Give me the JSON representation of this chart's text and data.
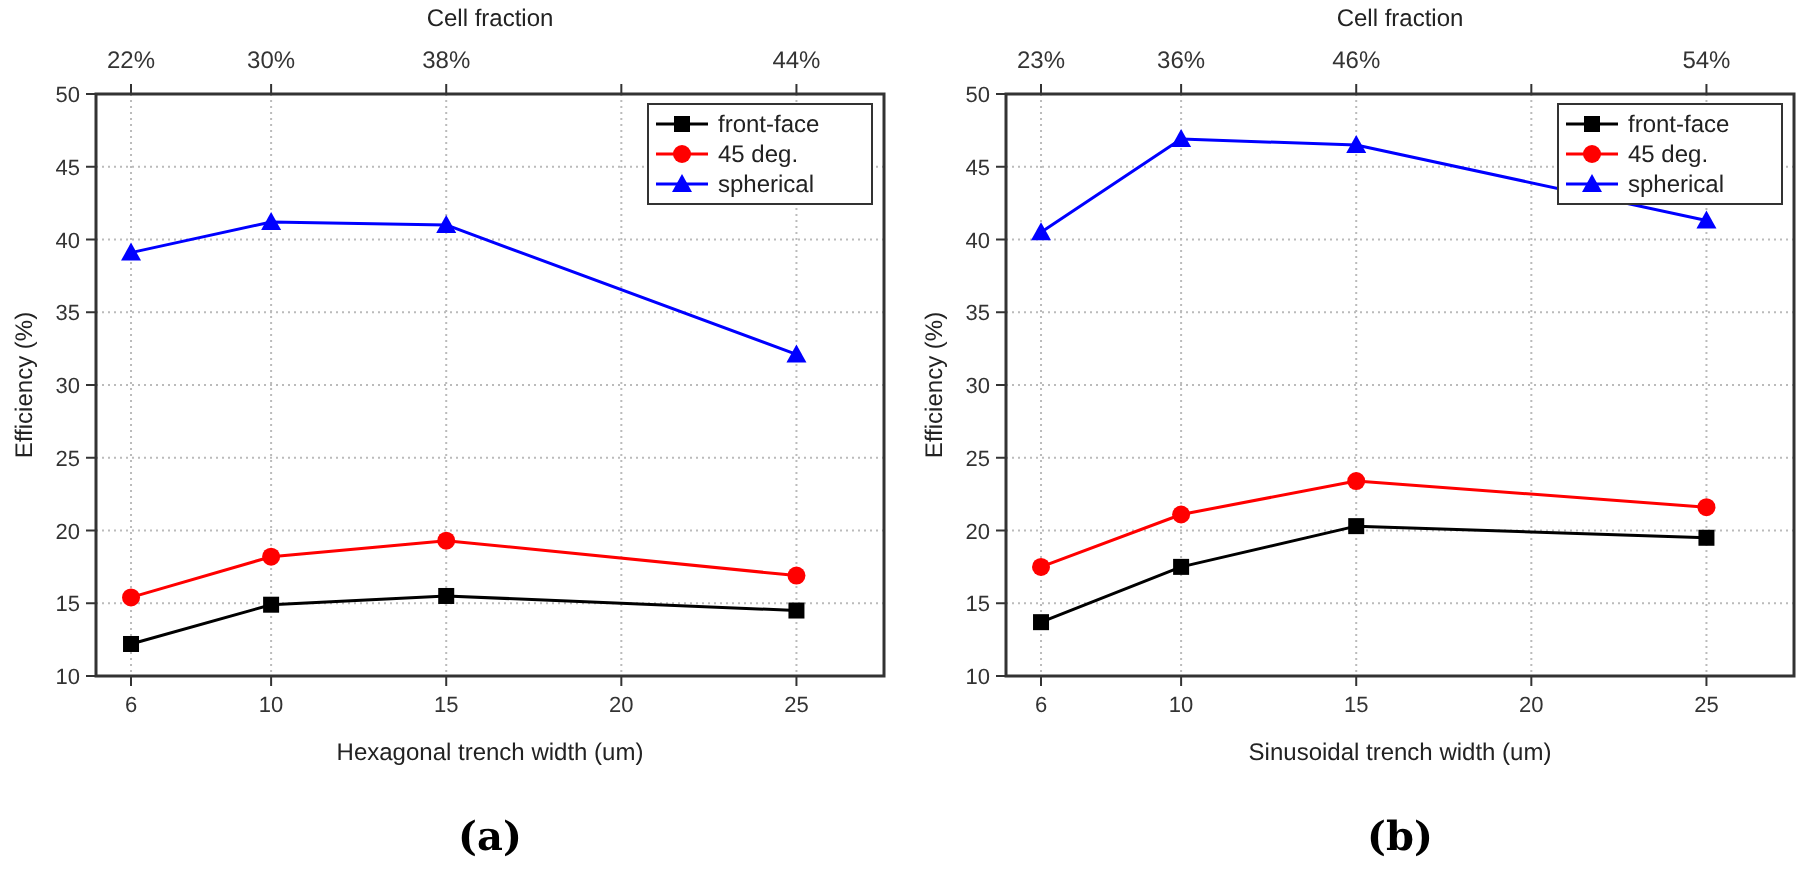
{
  "chart_data": [
    {
      "type": "line",
      "title": "(a)",
      "xlabel": "Hexagonal trench width (um)",
      "ylabel": "Efficiency (%)",
      "x2label": "Cell fraction",
      "x": [
        6,
        10,
        15,
        25
      ],
      "xlim": [
        5,
        27.5
      ],
      "xticks": [
        6,
        10,
        15,
        20,
        25
      ],
      "ylim": [
        10,
        50
      ],
      "yticks": [
        10,
        15,
        20,
        25,
        30,
        35,
        40,
        45,
        50
      ],
      "grid": true,
      "legend": "top right",
      "line_style": "solid",
      "annotations": [
        {
          "text": "22%",
          "x": 6
        },
        {
          "text": "30%",
          "x": 10
        },
        {
          "text": "38%",
          "x": 15
        },
        {
          "text": "44%",
          "x": 25
        }
      ],
      "series": [
        {
          "name": "front-face",
          "color": "#000000",
          "marker": "square",
          "values": [
            12.2,
            14.9,
            15.5,
            14.5
          ]
        },
        {
          "name": "45 deg.",
          "color": "#ff0000",
          "marker": "circle",
          "values": [
            15.4,
            18.2,
            19.3,
            16.9
          ]
        },
        {
          "name": "spherical",
          "color": "#0000ff",
          "marker": "triangle",
          "values": [
            39.1,
            41.2,
            41.0,
            32.1
          ]
        }
      ]
    },
    {
      "type": "line",
      "title": "(b)",
      "xlabel": "Sinusoidal trench width (um)",
      "ylabel": "Efficiency (%)",
      "x2label": "Cell fraction",
      "x": [
        6,
        10,
        15,
        25
      ],
      "xlim": [
        5,
        27.5
      ],
      "xticks": [
        6,
        10,
        15,
        20,
        25
      ],
      "ylim": [
        10,
        50
      ],
      "yticks": [
        10,
        15,
        20,
        25,
        30,
        35,
        40,
        45,
        50
      ],
      "grid": true,
      "legend": "top right",
      "line_style": "solid",
      "annotations": [
        {
          "text": "23%",
          "x": 6
        },
        {
          "text": "36%",
          "x": 10
        },
        {
          "text": "46%",
          "x": 15
        },
        {
          "text": "54%",
          "x": 25
        }
      ],
      "series": [
        {
          "name": "front-face",
          "color": "#000000",
          "marker": "square",
          "values": [
            13.7,
            17.5,
            20.3,
            19.5
          ]
        },
        {
          "name": "45 deg.",
          "color": "#ff0000",
          "marker": "circle",
          "values": [
            17.5,
            21.1,
            23.4,
            21.6
          ]
        },
        {
          "name": "spherical",
          "color": "#0000ff",
          "marker": "triangle",
          "values": [
            40.5,
            46.9,
            46.5,
            41.3
          ]
        }
      ]
    }
  ]
}
